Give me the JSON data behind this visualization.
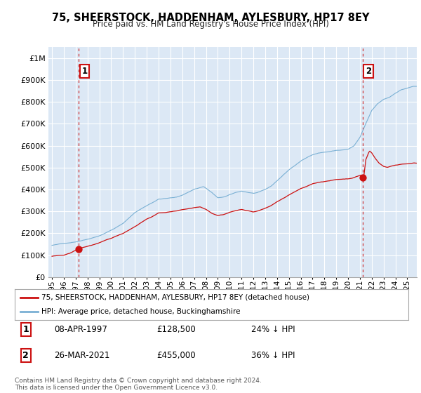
{
  "title": "75, SHEERSTOCK, HADDENHAM, AYLESBURY, HP17 8EY",
  "subtitle": "Price paid vs. HM Land Registry's House Price Index (HPI)",
  "bg_color": "#dce8f5",
  "grid_color": "#ffffff",
  "hpi_color": "#7ab0d4",
  "price_color": "#cc1111",
  "annotation1_label": "1",
  "annotation1_date": 1997.27,
  "annotation1_price": 128500,
  "annotation1_date_str": "08-APR-1997",
  "annotation1_price_str": "£128,500",
  "annotation1_pct_str": "24% ↓ HPI",
  "annotation2_label": "2",
  "annotation2_date": 2021.23,
  "annotation2_price": 455000,
  "annotation2_date_str": "26-MAR-2021",
  "annotation2_price_str": "£455,000",
  "annotation2_pct_str": "36% ↓ HPI",
  "legend_label1": "75, SHEERSTOCK, HADDENHAM, AYLESBURY, HP17 8EY (detached house)",
  "legend_label2": "HPI: Average price, detached house, Buckinghamshire",
  "footer": "Contains HM Land Registry data © Crown copyright and database right 2024.\nThis data is licensed under the Open Government Licence v3.0.",
  "ylim": [
    0,
    1050000
  ],
  "yticks": [
    0,
    100000,
    200000,
    300000,
    400000,
    500000,
    600000,
    700000,
    800000,
    900000,
    1000000
  ],
  "ytick_labels": [
    "£0",
    "£100K",
    "£200K",
    "£300K",
    "£400K",
    "£500K",
    "£600K",
    "£700K",
    "£800K",
    "£900K",
    "£1M"
  ],
  "xlim_left": 1994.7,
  "xlim_right": 2025.8,
  "xtick_years": [
    1995,
    1996,
    1997,
    1998,
    1999,
    2000,
    2001,
    2002,
    2003,
    2004,
    2005,
    2006,
    2007,
    2008,
    2009,
    2010,
    2011,
    2012,
    2013,
    2014,
    2015,
    2016,
    2017,
    2018,
    2019,
    2020,
    2021,
    2022,
    2023,
    2024,
    2025
  ]
}
